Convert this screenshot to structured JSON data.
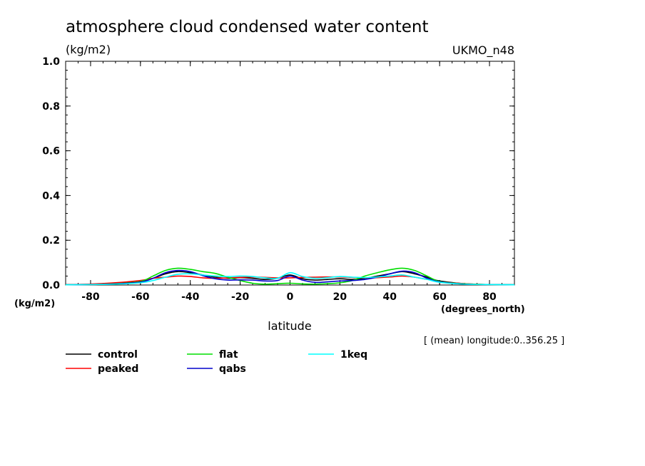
{
  "chart_data": {
    "type": "line",
    "title": "atmosphere cloud condensed water content",
    "units_label": "(kg/m2)",
    "ylabel_bottom": "(kg/m2)",
    "model_label": "UKMO_n48",
    "xlabel": "latitude",
    "x_units": "(degrees_north)",
    "note": "[ (mean) longitude:0..356.25 ]",
    "xlim": [
      -90,
      90
    ],
    "ylim": [
      0,
      1
    ],
    "x_ticks": [
      -80,
      -60,
      -40,
      -20,
      0,
      20,
      40,
      60,
      80
    ],
    "x_tick_labels": [
      "-80",
      "-60",
      "-40",
      "-20",
      "0",
      "20",
      "40",
      "60",
      "80"
    ],
    "y_ticks": [
      0,
      0.2,
      0.4,
      0.6,
      0.8,
      1.0
    ],
    "y_tick_labels": [
      "0.0",
      "0.2",
      "0.4",
      "0.6",
      "0.8",
      "1.0"
    ],
    "x": [
      -90,
      -80,
      -70,
      -60,
      -55,
      -50,
      -45,
      -40,
      -35,
      -30,
      -25,
      -20,
      -15,
      -10,
      -5,
      0,
      5,
      10,
      15,
      20,
      25,
      30,
      35,
      40,
      45,
      50,
      55,
      60,
      70,
      80,
      90
    ],
    "series": [
      {
        "name": "control",
        "color": "#000000",
        "values": [
          0.002,
          0.003,
          0.007,
          0.015,
          0.03,
          0.05,
          0.06,
          0.055,
          0.045,
          0.035,
          0.03,
          0.033,
          0.03,
          0.025,
          0.03,
          0.045,
          0.028,
          0.022,
          0.025,
          0.028,
          0.025,
          0.03,
          0.04,
          0.05,
          0.06,
          0.05,
          0.035,
          0.018,
          0.006,
          0.002,
          0.001
        ]
      },
      {
        "name": "peaked",
        "color": "#ff0000",
        "values": [
          0.002,
          0.004,
          0.01,
          0.02,
          0.03,
          0.035,
          0.04,
          0.038,
          0.032,
          0.03,
          0.032,
          0.034,
          0.036,
          0.034,
          0.032,
          0.032,
          0.034,
          0.035,
          0.036,
          0.036,
          0.034,
          0.032,
          0.033,
          0.036,
          0.04,
          0.035,
          0.025,
          0.015,
          0.006,
          0.002,
          0.001
        ]
      },
      {
        "name": "flat",
        "color": "#00dd00",
        "values": [
          0.001,
          0.002,
          0.006,
          0.016,
          0.04,
          0.065,
          0.075,
          0.07,
          0.06,
          0.052,
          0.035,
          0.02,
          0.008,
          0.004,
          0.006,
          0.008,
          0.005,
          0.004,
          0.006,
          0.01,
          0.02,
          0.04,
          0.055,
          0.068,
          0.075,
          0.065,
          0.04,
          0.016,
          0.005,
          0.002,
          0.001
        ]
      },
      {
        "name": "qabs",
        "color": "#0000cc",
        "values": [
          0.001,
          0.002,
          0.005,
          0.013,
          0.03,
          0.055,
          0.065,
          0.06,
          0.042,
          0.028,
          0.022,
          0.023,
          0.022,
          0.018,
          0.02,
          0.04,
          0.022,
          0.012,
          0.014,
          0.018,
          0.02,
          0.025,
          0.035,
          0.05,
          0.062,
          0.055,
          0.03,
          0.014,
          0.004,
          0.002,
          0.001
        ]
      },
      {
        "name": "1keq",
        "color": "#00ffff",
        "values": [
          0.001,
          0.002,
          0.004,
          0.01,
          0.02,
          0.035,
          0.048,
          0.05,
          0.045,
          0.04,
          0.038,
          0.04,
          0.038,
          0.032,
          0.03,
          0.055,
          0.038,
          0.03,
          0.033,
          0.038,
          0.035,
          0.033,
          0.036,
          0.04,
          0.045,
          0.035,
          0.025,
          0.012,
          0.004,
          0.002,
          0.001
        ]
      }
    ]
  }
}
